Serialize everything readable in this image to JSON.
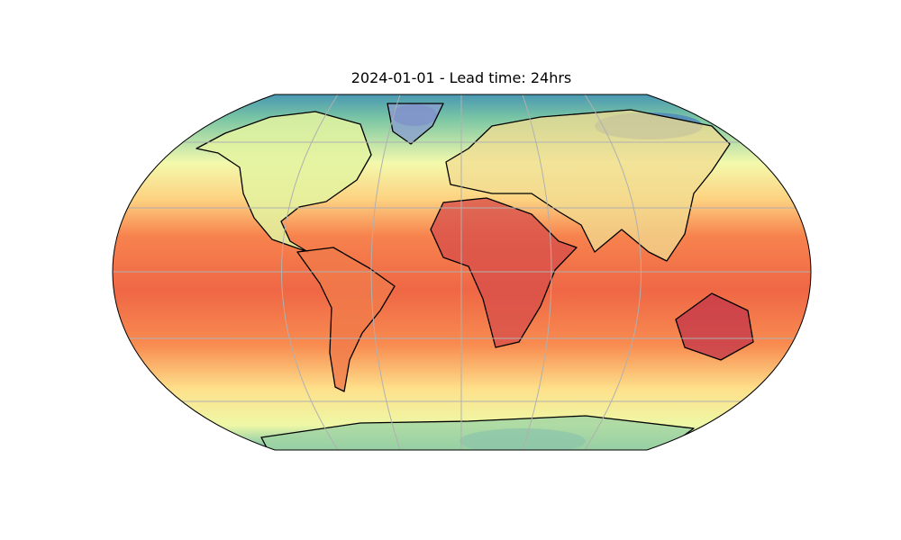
{
  "title": "2024-01-01 - Lead time: 24hrs"
}
